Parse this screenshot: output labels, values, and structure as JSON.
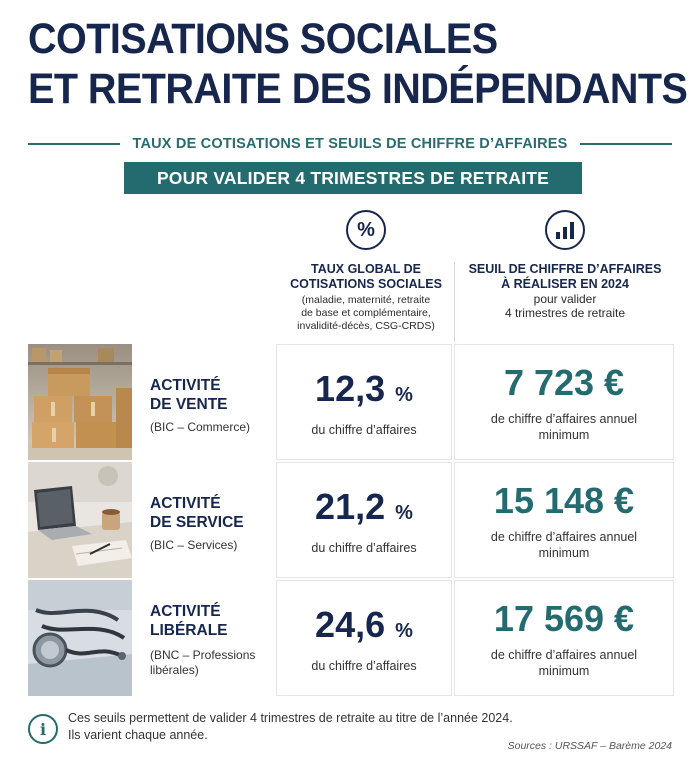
{
  "title": {
    "line1": "COTISATIONS SOCIALES",
    "line2": "ET RETRAITE DES INDÉPENDANTS"
  },
  "subtitle": "TAUX DE COTISATIONS ET SEUILS DE CHIFFRE D’AFFAIRES",
  "banner": "POUR VALIDER 4 TRIMESTRES DE RETRAITE",
  "columns": {
    "rate": {
      "icon": "percent-icon",
      "icon_glyph": "%",
      "title_line1": "TAUX GLOBAL DE",
      "title_line2": "COTISATIONS SOCIALES",
      "note_line1": "(maladie, maternité, retraite",
      "note_line2": "de base et complémentaire,",
      "note_line3": "invalidité-décès, CSG-CRDS)"
    },
    "seuil": {
      "icon": "bar-chart-icon",
      "title_line1": "SEUIL DE CHIFFRE D’AFFAIRES",
      "title_line2": "À RÉALISER EN 2024",
      "sub_line1": "pour valider",
      "sub_line2": "4 trimestres de retraite"
    }
  },
  "rows": [
    {
      "photo": "cardboard-boxes-photo",
      "title_line1": "ACTIVITÉ",
      "title_line2": "DE VENTE",
      "sub_line1": "(BIC – Commerce)",
      "sub_line2": "",
      "rate": "12,3",
      "rate_unit": "%",
      "rate_sub": "du chiffre d’affaires",
      "seuil": "7 723 €",
      "seuil_sub_line1": "de chiffre d’affaires annuel",
      "seuil_sub_line2": "minimum"
    },
    {
      "photo": "laptop-desk-photo",
      "title_line1": "ACTIVITÉ",
      "title_line2": "DE SERVICE",
      "sub_line1": "(BIC – Services)",
      "sub_line2": "",
      "rate": "21,2",
      "rate_unit": "%",
      "rate_sub": "du chiffre d’affaires",
      "seuil": "15 148 €",
      "seuil_sub_line1": "de chiffre d’affaires annuel",
      "seuil_sub_line2": "minimum"
    },
    {
      "photo": "stethoscope-photo",
      "title_line1": "ACTIVITÉ",
      "title_line2": "LIBÉRALE",
      "sub_line1": "(BNC – Professions",
      "sub_line2": "libérales)",
      "rate": "24,6",
      "rate_unit": "%",
      "rate_sub": "du chiffre d’affaires",
      "seuil": "17 569 €",
      "seuil_sub_line1": "de chiffre d’affaires annuel",
      "seuil_sub_line2": "minimum"
    }
  ],
  "footer": {
    "icon": "info-icon",
    "icon_glyph": "i",
    "note_line1": "Ces seuils permettent de valider 4 trimestres de retraite au titre de l’année 2024.",
    "note_line2": "Ils varient chaque année.",
    "source": "Sources : URSSAF – Barème 2024"
  },
  "colors": {
    "navy": "#16264d",
    "teal": "#236b6e"
  }
}
